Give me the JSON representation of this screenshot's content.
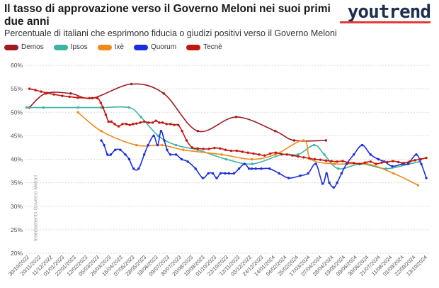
{
  "title": "Il tasso di approvazione verso il Governo Meloni nei suoi primi due anni",
  "subtitle": "Percentuale di italiani che esprimono fiducia o giudizi positivi verso il Governo Meloni",
  "logo_text": "youtrend",
  "colors": {
    "Demos": "#9e1b22",
    "Ipsos": "#3fb3a3",
    "Ixè": "#f08a1c",
    "Quorum": "#1a2ee0",
    "Tecnè": "#c0180f",
    "logo_bar": "#e53935"
  },
  "chart_data": {
    "type": "line",
    "title": "Il tasso di approvazione verso il Governo Meloni nei suoi primi due anni",
    "subtitle": "Percentuale di italiani che esprimono fiducia o giudizi positivi verso il Governo Meloni",
    "xlabel": "",
    "ylabel": "",
    "ylim": [
      20,
      60
    ],
    "y_ticks": [
      "20%",
      "25%",
      "30%",
      "35%",
      "40%",
      "45%",
      "50%",
      "55%",
      "60%"
    ],
    "x_ticks": [
      "30/10/2022",
      "20/11/2022",
      "11/12/2022",
      "01/01/2023",
      "22/01/2023",
      "12/02/2023",
      "05/03/2023",
      "26/03/2023",
      "16/04/2023",
      "07/05/2023",
      "28/05/2023",
      "18/06/2023",
      "09/07/2023",
      "30/07/2023",
      "20/08/2023",
      "10/09/2023",
      "01/10/2023",
      "22/10/2023",
      "12/11/2023",
      "03/12/2023",
      "24/12/2023",
      "14/01/2024",
      "04/02/2024",
      "25/02/2024",
      "17/03/2024",
      "07/04/2024",
      "28/04/2024",
      "19/05/2024",
      "09/06/2024",
      "30/06/2024",
      "21/07/2024",
      "11/08/2024",
      "01/09/2024",
      "22/09/2024",
      "13/10/2024"
    ],
    "annotation": "Insediamento Governo Meloni",
    "grid": true,
    "legend_position": "top-left",
    "series": [
      {
        "name": "Demos",
        "x": [
          "2022-10-30",
          "2022-11-28",
          "2023-01-12",
          "2023-02-20",
          "2023-05-01",
          "2023-06-28",
          "2023-08-28",
          "2023-11-05",
          "2024-01-14",
          "2024-02-17",
          "2024-04-14"
        ],
        "y": [
          51,
          54,
          54,
          53,
          56,
          54,
          46,
          49,
          46,
          44,
          44
        ]
      },
      {
        "name": "Ipsos",
        "x": [
          "2022-10-25",
          "2022-11-24",
          "2023-01-25",
          "2023-03-08",
          "2023-04-27",
          "2023-05-18",
          "2023-06-18",
          "2023-07-20",
          "2023-08-28",
          "2023-10-18",
          "2023-12-04",
          "2024-01-26",
          "2024-02-24",
          "2024-03-24",
          "2024-04-11",
          "2024-05-06",
          "2024-06-16",
          "2024-07-31",
          "2024-09-10",
          "2024-09-29"
        ],
        "y": [
          51,
          51,
          51,
          51,
          51,
          49,
          45,
          43,
          42,
          40,
          39,
          41,
          41,
          43,
          41,
          38,
          39,
          38,
          39,
          39.5
        ]
      },
      {
        "name": "Ixè",
        "x": [
          "2023-01-25",
          "2023-03-08",
          "2023-05-10",
          "2023-06-25",
          "2023-08-02",
          "2023-10-10",
          "2023-12-03",
          "2024-01-14",
          "2024-03-05",
          "2024-03-18",
          "2024-04-30",
          "2024-06-27",
          "2024-08-13",
          "2024-09-26"
        ],
        "y": [
          50,
          46,
          43,
          43,
          42,
          41,
          40,
          41,
          44,
          40,
          39,
          39,
          37,
          34.5
        ]
      },
      {
        "name": "Quorum",
        "x": [
          "2023-03-08",
          "2023-03-13",
          "2023-03-19",
          "2023-03-25",
          "2023-04-02",
          "2023-04-11",
          "2023-04-20",
          "2023-04-27",
          "2023-05-05",
          "2023-05-14",
          "2023-05-24",
          "2023-05-31",
          "2023-06-10",
          "2023-06-17",
          "2023-06-23",
          "2023-06-29",
          "2023-07-04",
          "2023-07-10",
          "2023-07-20",
          "2023-07-30",
          "2023-08-10",
          "2023-08-24",
          "2023-09-06",
          "2023-09-16",
          "2023-09-24",
          "2023-10-01",
          "2023-10-08",
          "2023-10-16",
          "2023-10-23",
          "2023-11-01",
          "2023-11-10",
          "2023-11-20",
          "2023-11-28",
          "2023-12-03",
          "2023-12-10",
          "2023-12-20",
          "2024-01-04",
          "2024-01-21",
          "2024-02-07",
          "2024-02-28",
          "2024-03-13",
          "2024-03-27",
          "2024-04-08",
          "2024-04-15",
          "2024-04-20",
          "2024-04-28",
          "2024-05-04",
          "2024-05-12",
          "2024-05-21",
          "2024-06-03",
          "2024-06-18",
          "2024-07-03",
          "2024-07-17",
          "2024-07-28",
          "2024-08-11",
          "2024-08-29",
          "2024-09-08",
          "2024-09-23",
          "2024-10-02",
          "2024-10-11"
        ],
        "y": [
          44,
          43,
          41,
          41,
          42,
          42,
          41,
          40,
          38,
          38,
          41,
          43,
          45,
          43,
          46,
          44,
          42,
          41,
          41,
          40,
          39.5,
          38,
          36,
          37,
          37,
          36,
          37,
          37,
          37,
          37,
          38,
          39,
          38,
          38,
          38,
          38,
          38,
          37,
          36,
          36.5,
          37,
          39,
          34.8,
          37,
          35,
          34,
          35,
          37,
          39,
          41,
          43,
          41,
          40,
          39.5,
          38.5,
          39,
          39,
          41,
          39,
          36
        ]
      },
      {
        "name": "Tecnè",
        "x": [
          "2022-10-30",
          "2022-11-10",
          "2022-11-20",
          "2022-12-01",
          "2022-12-13",
          "2022-12-28",
          "2023-01-10",
          "2023-01-25",
          "2023-02-15",
          "2023-03-01",
          "2023-03-07",
          "2023-03-11",
          "2023-03-16",
          "2023-03-21",
          "2023-03-26",
          "2023-04-01",
          "2023-04-08",
          "2023-04-15",
          "2023-04-22",
          "2023-04-28",
          "2023-05-04",
          "2023-05-10",
          "2023-05-17",
          "2023-05-24",
          "2023-06-01",
          "2023-06-08",
          "2023-06-14",
          "2023-06-20",
          "2023-06-26",
          "2023-07-03",
          "2023-07-10",
          "2023-07-17",
          "2023-07-24",
          "2023-07-31",
          "2023-08-08",
          "2023-08-18",
          "2023-08-28",
          "2023-09-07",
          "2023-09-17",
          "2023-09-27",
          "2023-10-07",
          "2023-10-17",
          "2023-10-27",
          "2023-11-06",
          "2023-11-16",
          "2023-11-26",
          "2023-12-06",
          "2023-12-16",
          "2023-12-26",
          "2024-01-05",
          "2024-01-15",
          "2024-01-25",
          "2024-02-04",
          "2024-02-14",
          "2024-02-24",
          "2024-03-05",
          "2024-03-15",
          "2024-03-25",
          "2024-04-04",
          "2024-04-14",
          "2024-04-24",
          "2024-05-04",
          "2024-05-14",
          "2024-05-24",
          "2024-06-03",
          "2024-06-13",
          "2024-06-23",
          "2024-07-03",
          "2024-07-13",
          "2024-07-23",
          "2024-08-02",
          "2024-08-12",
          "2024-08-22",
          "2024-09-01",
          "2024-09-11",
          "2024-09-21",
          "2024-10-01",
          "2024-10-11"
        ],
        "y": [
          55,
          54.7,
          54.4,
          54.1,
          53.8,
          53.5,
          53.3,
          53.1,
          53,
          53,
          52,
          51,
          49.5,
          48,
          48,
          47.5,
          47,
          47.5,
          47.5,
          47.3,
          47.5,
          47.6,
          47.8,
          48,
          47.8,
          47.8,
          48.2,
          47.8,
          47.8,
          47.5,
          47.5,
          47.3,
          47.3,
          46,
          44,
          42.5,
          42.3,
          42.2,
          42.2,
          42.4,
          42.3,
          42,
          41.8,
          41.8,
          41.6,
          41.4,
          41.2,
          41,
          40.8,
          41.2,
          41.4,
          41.1,
          41,
          40.8,
          40.6,
          40.4,
          40.2,
          40,
          39.9,
          39.7,
          39.6,
          39.5,
          39.6,
          39.3,
          39.2,
          39,
          39.3,
          39.5,
          39,
          39.3,
          39.4,
          39.6,
          39.4,
          39.2,
          39.5,
          39.8,
          40,
          40.3
        ]
      }
    ]
  }
}
